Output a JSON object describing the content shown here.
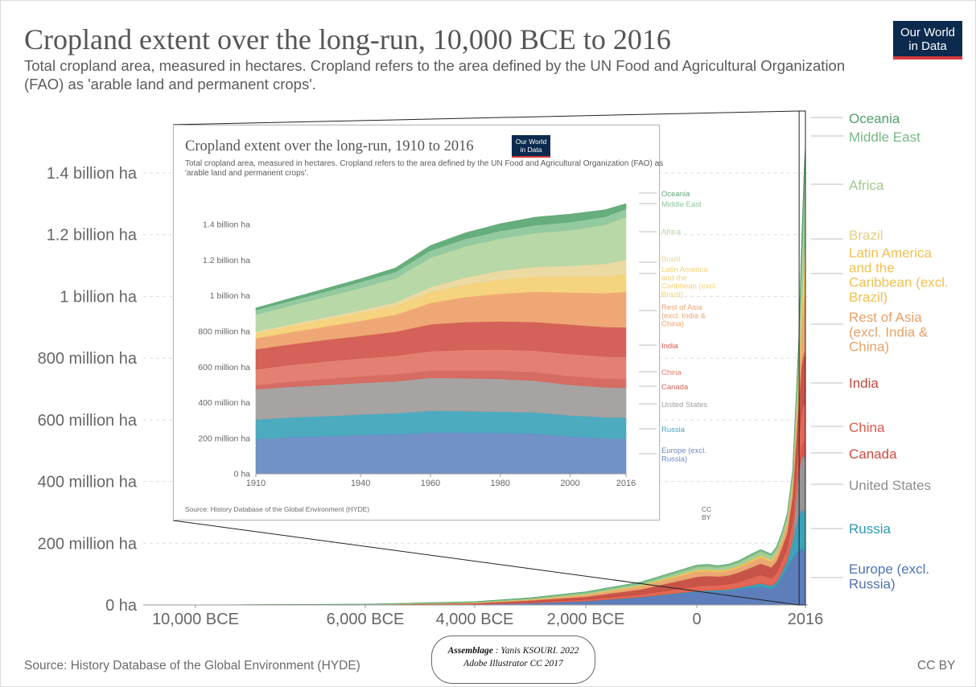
{
  "main": {
    "title": "Cropland extent over the long-run, 10,000 BCE to 2016",
    "subtitle": "Total cropland area, measured in hectares. Cropland refers to the area defined by the UN Food and Agricultural Organization (FAO) as 'arable land and permanent crops'.",
    "logo": [
      "Our World",
      "in Data"
    ],
    "source": "Source: History Database of the Global Environment (HYDE)",
    "license": "CC BY"
  },
  "inset": {
    "title": "Cropland extent over the long-run, 1910 to 2016",
    "subtitle": "Total cropland area, measured in hectares. Cropland refers to the area defined by the UN Food and Agricultural Organization (FAO) as 'arable land and permanent crops'.",
    "logo": [
      "Our World",
      "in Data"
    ],
    "source": "Source: History Database of the Global Environment (HYDE)",
    "license": "CC BY"
  },
  "credit": {
    "strong": "Assemblage",
    "author": " : Yanis KSOURI. 2022",
    "tool": "Adobe Illustrator CC 2017"
  },
  "chart_data": [
    {
      "type": "area",
      "stacked": true,
      "x_unit": "year",
      "x": [
        -10000,
        -6000,
        -4000,
        -3000,
        -2000,
        -1000,
        0,
        200,
        400,
        600,
        800,
        1000,
        1200,
        1400,
        1500,
        1600,
        1700,
        1800,
        1900,
        1950,
        2000,
        2016
      ],
      "xticks": [
        {
          "value": -10000,
          "label": "10,000 BCE"
        },
        {
          "value": -6000,
          "label": "6,000 BCE"
        },
        {
          "value": -4000,
          "label": "4,000 BCE"
        },
        {
          "value": -2000,
          "label": "2,000 BCE"
        },
        {
          "value": 0,
          "label": "0"
        },
        {
          "value": 2016,
          "label": "2016"
        }
      ],
      "yticks": [
        {
          "value": 0,
          "label": "0 ha"
        },
        {
          "value": 200000000,
          "label": "200 million ha"
        },
        {
          "value": 400000000,
          "label": "400 million ha"
        },
        {
          "value": 600000000,
          "label": "600 million ha"
        },
        {
          "value": 800000000,
          "label": "800 million ha"
        },
        {
          "value": 1000000000,
          "label": "1 billion ha"
        },
        {
          "value": 1200000000,
          "label": "1.2 billion ha"
        },
        {
          "value": 1400000000,
          "label": "1.4 billion ha"
        }
      ],
      "ylim": [
        0,
        1400000000
      ],
      "grid": true,
      "series": [
        {
          "name": "Europe (excl. Russia)",
          "color": "#4f73b5",
          "values": [
            0,
            0.5,
            2,
            6,
            12,
            24,
            42,
            43,
            44,
            45,
            50,
            55,
            60,
            52,
            62,
            90,
            120,
            150,
            175,
            182,
            175,
            172
          ]
        },
        {
          "name": "Russia",
          "color": "#2b9ab3",
          "values": [
            0,
            0,
            0.1,
            0.3,
            0.6,
            1.5,
            3,
            4,
            4,
            5,
            6,
            8,
            10,
            10,
            12,
            18,
            25,
            55,
            115,
            125,
            130,
            120
          ]
        },
        {
          "name": "United States",
          "color": "#8d8d8d",
          "values": [
            0,
            0,
            0,
            0,
            0,
            0,
            0,
            0,
            0,
            0,
            0,
            0,
            0,
            0,
            0,
            0,
            0,
            10,
            140,
            170,
            178,
            165
          ]
        },
        {
          "name": "Canada",
          "color": "#d24a3e",
          "values": [
            0,
            0,
            0,
            0,
            0,
            0,
            0,
            0,
            0,
            0,
            0,
            0,
            0,
            0,
            0,
            0,
            0,
            1,
            12,
            38,
            48,
            48
          ]
        },
        {
          "name": "China",
          "color": "#e05a49",
          "values": [
            0,
            0.5,
            1.5,
            3,
            5,
            9,
            16,
            17,
            16,
            18,
            20,
            24,
            28,
            25,
            30,
            35,
            40,
            55,
            85,
            110,
            130,
            125
          ]
        },
        {
          "name": "India",
          "color": "#c3453a",
          "values": [
            0,
            0.5,
            2,
            5,
            9,
            16,
            30,
            30,
            28,
            28,
            30,
            33,
            36,
            35,
            38,
            42,
            50,
            80,
            120,
            150,
            165,
            165
          ]
        },
        {
          "name": "Rest of Asia (excl. India & China)",
          "color": "#e8a266",
          "values": [
            0,
            0.3,
            1.5,
            3,
            6,
            10,
            17,
            16,
            15,
            15,
            16,
            18,
            20,
            18,
            20,
            25,
            30,
            40,
            70,
            120,
            180,
            200
          ]
        },
        {
          "name": "Latin America and the Caribbean (excl. Brazil)",
          "color": "#f2c14e",
          "values": [
            0,
            0.1,
            0.5,
            1,
            2,
            3,
            5,
            5,
            5,
            5,
            5,
            6,
            6,
            6,
            6,
            3,
            4,
            8,
            30,
            50,
            90,
            100
          ]
        },
        {
          "name": "Brazil",
          "color": "#e3cf87",
          "values": [
            0,
            0,
            0,
            0,
            0,
            0,
            0.3,
            0.3,
            0.3,
            0.3,
            0.3,
            0.3,
            0.3,
            0.3,
            0.3,
            0.3,
            1,
            2,
            5,
            20,
            55,
            80
          ]
        },
        {
          "name": "Africa",
          "color": "#9fca8e",
          "values": [
            0,
            0.3,
            1.2,
            2,
            4,
            6,
            9,
            9,
            9,
            10,
            11,
            12,
            13,
            13,
            14,
            15,
            17,
            22,
            60,
            130,
            200,
            240
          ]
        },
        {
          "name": "Middle East",
          "color": "#77b983",
          "values": [
            0,
            0.5,
            2,
            3,
            4,
            5,
            7,
            7,
            6,
            6,
            6,
            6,
            6,
            6,
            7,
            7,
            8,
            10,
            20,
            40,
            45,
            45
          ]
        },
        {
          "name": "Oceania",
          "color": "#4f9f69",
          "values": [
            0,
            0,
            0,
            0,
            0,
            0,
            0,
            0,
            0,
            0,
            0,
            0,
            0,
            0,
            0,
            0,
            0,
            0,
            10,
            30,
            45,
            30
          ]
        }
      ],
      "values_unit": "million ha"
    },
    {
      "type": "area",
      "stacked": true,
      "x_unit": "year",
      "x": [
        1910,
        1920,
        1930,
        1940,
        1950,
        1960,
        1970,
        1980,
        1990,
        2000,
        2010,
        2016
      ],
      "xticks": [
        {
          "value": 1910,
          "label": "1910"
        },
        {
          "value": 1940,
          "label": "1940"
        },
        {
          "value": 1960,
          "label": "1960"
        },
        {
          "value": 1980,
          "label": "1980"
        },
        {
          "value": 2000,
          "label": "2000"
        },
        {
          "value": 2016,
          "label": "2016"
        }
      ],
      "yticks": [
        {
          "value": 0,
          "label": "0 ha"
        },
        {
          "value": 200000000,
          "label": "200 million ha"
        },
        {
          "value": 400000000,
          "label": "400 million ha"
        },
        {
          "value": 600000000,
          "label": "600 million ha"
        },
        {
          "value": 800000000,
          "label": "800 million ha"
        },
        {
          "value": 1000000000,
          "label": "1 billion ha"
        },
        {
          "value": 1200000000,
          "label": "1.2 billion ha"
        },
        {
          "value": 1400000000,
          "label": "1.4 billion ha"
        }
      ],
      "ylim": [
        0,
        1400000000
      ],
      "grid": false,
      "series": [
        {
          "name": "Europe (excl. Russia)",
          "color": "#6a8bc4",
          "values": [
            195,
            205,
            212,
            218,
            222,
            232,
            232,
            230,
            225,
            210,
            200,
            198
          ]
        },
        {
          "name": "Russia",
          "color": "#43a6bd",
          "values": [
            110,
            112,
            112,
            115,
            118,
            122,
            120,
            118,
            120,
            118,
            118,
            118
          ]
        },
        {
          "name": "United States",
          "color": "#a39e9e",
          "values": [
            170,
            172,
            175,
            178,
            180,
            185,
            185,
            185,
            178,
            172,
            168,
            168
          ]
        },
        {
          "name": "Canada",
          "color": "#d4645a",
          "values": [
            22,
            28,
            33,
            36,
            38,
            40,
            42,
            45,
            47,
            48,
            48,
            48
          ]
        },
        {
          "name": "China",
          "color": "#e2796a",
          "values": [
            90,
            95,
            100,
            102,
            105,
            110,
            118,
            120,
            122,
            125,
            125,
            125
          ]
        },
        {
          "name": "India",
          "color": "#d25a50",
          "values": [
            112,
            115,
            120,
            125,
            135,
            150,
            155,
            158,
            160,
            165,
            165,
            165
          ]
        },
        {
          "name": "Rest of Asia (excl. India & China)",
          "color": "#eea36e",
          "values": [
            62,
            68,
            75,
            85,
            95,
            120,
            140,
            155,
            170,
            180,
            190,
            200
          ]
        },
        {
          "name": "Latin America and the Caribbean (excl. Brazil)",
          "color": "#f6d177",
          "values": [
            30,
            35,
            40,
            45,
            50,
            60,
            70,
            80,
            85,
            90,
            95,
            100
          ]
        },
        {
          "name": "Brazil",
          "color": "#ead89d",
          "values": [
            8,
            10,
            12,
            15,
            20,
            30,
            40,
            50,
            55,
            60,
            70,
            80
          ]
        },
        {
          "name": "Africa",
          "color": "#b4d6a2",
          "values": [
            95,
            105,
            115,
            125,
            135,
            165,
            175,
            180,
            190,
            200,
            220,
            240
          ]
        },
        {
          "name": "Middle East",
          "color": "#8ec79b",
          "values": [
            25,
            27,
            30,
            33,
            36,
            40,
            42,
            43,
            44,
            45,
            45,
            45
          ]
        },
        {
          "name": "Oceania",
          "color": "#5faa76",
          "values": [
            12,
            14,
            16,
            18,
            22,
            28,
            34,
            40,
            45,
            45,
            38,
            30
          ]
        }
      ],
      "values_unit": "million ha"
    }
  ]
}
